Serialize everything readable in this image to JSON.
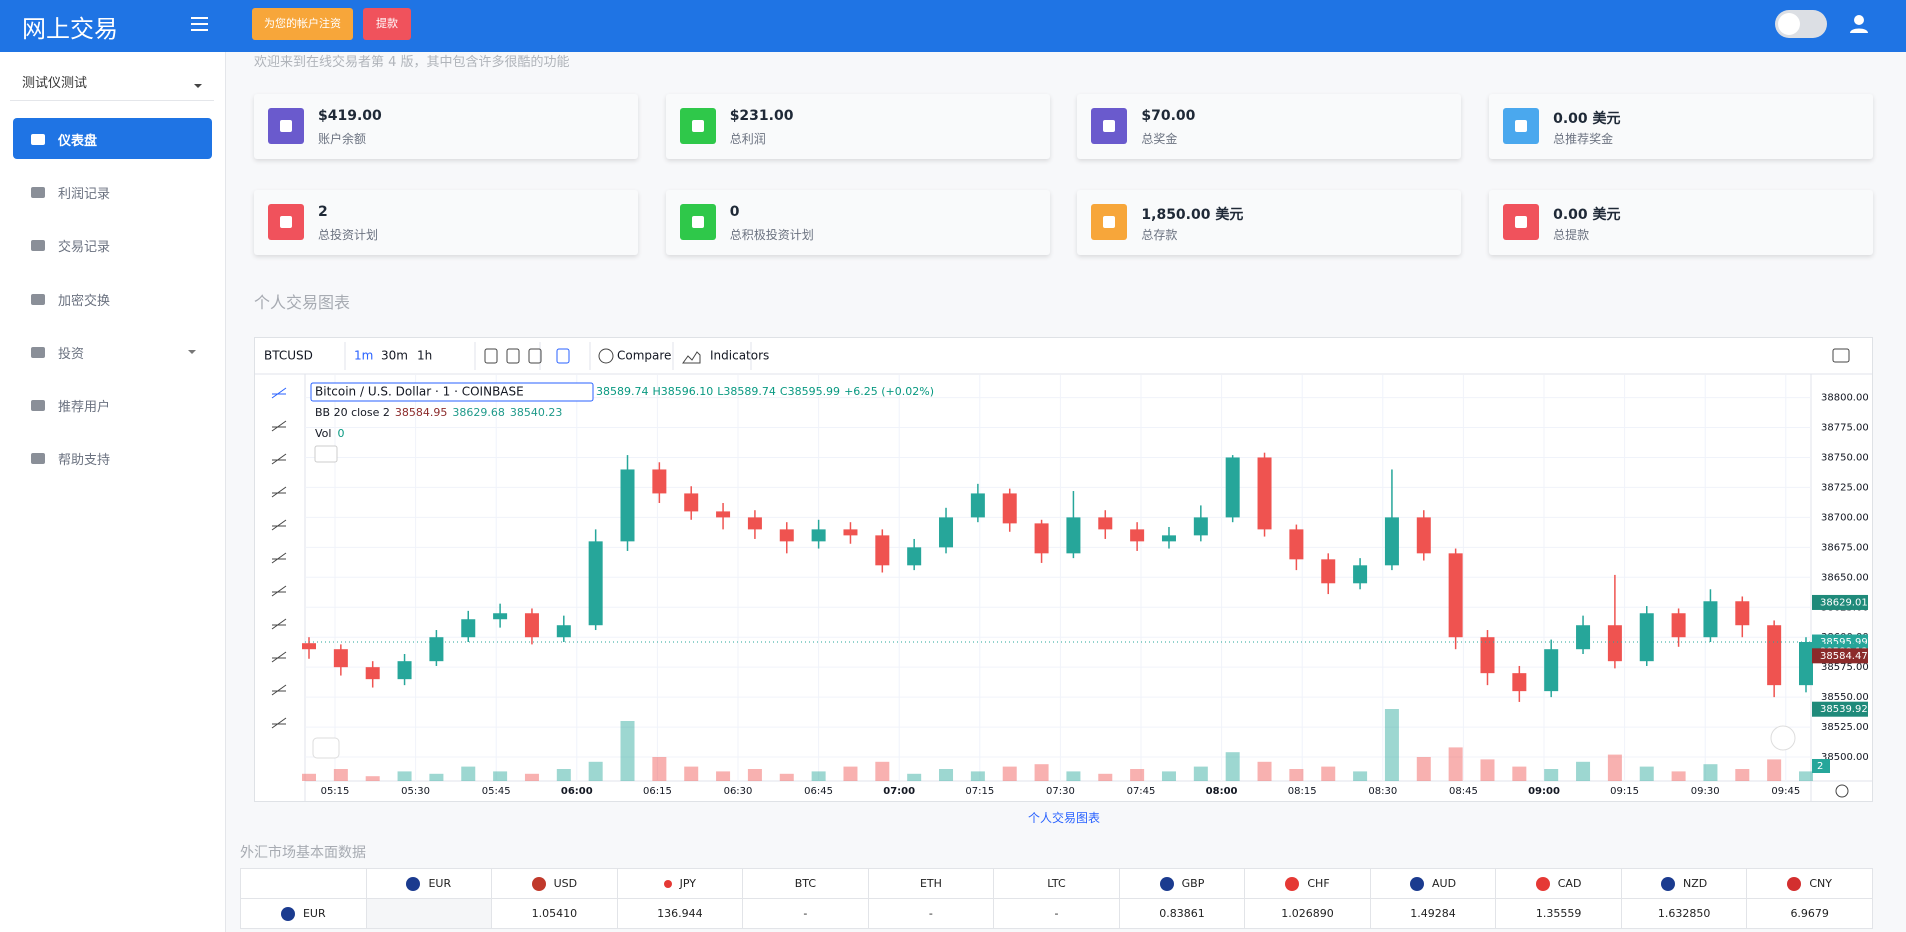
{
  "header": {
    "title": "网上交易",
    "buttons": [
      "为您的帐户注资",
      "提款"
    ]
  },
  "sidebar": {
    "account": "测试仪测试",
    "menu": [
      "仪表盘",
      "利润记录",
      "交易记录",
      "加密交换",
      "投资",
      "推荐用户",
      "帮助支持"
    ]
  },
  "welcome": "欢迎来到在线交易者第 4 版，其中包含许多很酷的功能",
  "cards": [
    {
      "value": "$419.00",
      "label": "账户余额",
      "icon_color": "#6a5acd"
    },
    {
      "value": "$231.00",
      "label": "总利润",
      "icon_color": "#2fc84a"
    },
    {
      "value": "$70.00",
      "label": "总奖金",
      "icon_color": "#6a5acd"
    },
    {
      "value": "0.00 美元",
      "label": "总推荐奖金",
      "icon_color": "#4aa8ee"
    },
    {
      "value": "2",
      "label": "总投资计划",
      "icon_color": "#f0525c"
    },
    {
      "value": "0",
      "label": "总积极投资计划",
      "icon_color": "#2fc84a"
    },
    {
      "value": "1,850.00 美元",
      "label": "总存款",
      "icon_color": "#f7a63a"
    },
    {
      "value": "0.00 美元",
      "label": "总提款",
      "icon_color": "#f0525c"
    }
  ],
  "chart_section": {
    "title": "个人交易图表",
    "link": "个人交易图表"
  },
  "chart_data": {
    "type": "candlestick",
    "symbol": "BTCUSD",
    "intervals": [
      "1m",
      "30m",
      "1h"
    ],
    "compare": "Compare",
    "indicators": "Indicators",
    "legend_title": "Bitcoin / U.S. Dollar · 1 · COINBASE",
    "ohlc": [
      "38589.74",
      "H38596.10",
      "L38589.74",
      "C38595.99",
      "+6.25 (+0.02%)"
    ],
    "bb_label": "BB 20 close 2",
    "bb_values": [
      {
        "value": 38584.95,
        "color": "#8b2a2a"
      },
      {
        "value": 38629.68,
        "color": "#1f9a8a"
      },
      {
        "value": 38540.23,
        "color": "#1f9a8a"
      }
    ],
    "vol_label": "Vol",
    "vol_value": 0,
    "up_color": "#26a69a",
    "down_color": "#ef5350",
    "ylim": [
      38480,
      38818
    ],
    "yticks": [
      {
        "value": 38500,
        "label": "38500.00"
      },
      {
        "value": 38525,
        "label": "38525.00"
      },
      {
        "value": 38550,
        "label": "38550.00"
      },
      {
        "value": 38575,
        "label": "38575.00"
      },
      {
        "value": 38600,
        "label": "38600.00"
      },
      {
        "value": 38625,
        "label": "38625.00"
      },
      {
        "value": 38650,
        "label": "38650.00"
      },
      {
        "value": 38675,
        "label": "38675.00"
      },
      {
        "value": 38700,
        "label": "38700.00"
      },
      {
        "value": 38725,
        "label": "38725.00"
      },
      {
        "value": 38750,
        "label": "38750.00"
      },
      {
        "value": 38775,
        "label": "38775.00"
      },
      {
        "value": 38800,
        "label": "38800.00"
      }
    ],
    "xticks": [
      "05:15",
      "05:30",
      "05:45",
      "06:00",
      "06:15",
      "06:30",
      "06:45",
      "07:00",
      "07:15",
      "07:30",
      "07:45",
      "08:00",
      "08:15",
      "08:30",
      "08:45",
      "09:00",
      "09:15",
      "09:30",
      "09:45"
    ],
    "candles": [
      [
        38595,
        38600,
        38582,
        38590
      ],
      [
        38590,
        38594,
        38568,
        38575
      ],
      [
        38575,
        38580,
        38558,
        38565
      ],
      [
        38565,
        38586,
        38560,
        38580
      ],
      [
        38580,
        38606,
        38576,
        38600
      ],
      [
        38600,
        38622,
        38596,
        38615
      ],
      [
        38615,
        38628,
        38608,
        38620
      ],
      [
        38620,
        38624,
        38594,
        38600
      ],
      [
        38600,
        38618,
        38596,
        38610
      ],
      [
        38610,
        38690,
        38606,
        38680
      ],
      [
        38680,
        38752,
        38672,
        38740
      ],
      [
        38740,
        38746,
        38712,
        38720
      ],
      [
        38720,
        38726,
        38698,
        38705
      ],
      [
        38705,
        38712,
        38690,
        38700
      ],
      [
        38700,
        38706,
        38682,
        38690
      ],
      [
        38690,
        38696,
        38670,
        38680
      ],
      [
        38680,
        38698,
        38674,
        38690
      ],
      [
        38690,
        38696,
        38678,
        38685
      ],
      [
        38685,
        38690,
        38654,
        38660
      ],
      [
        38660,
        38682,
        38656,
        38675
      ],
      [
        38675,
        38708,
        38670,
        38700
      ],
      [
        38700,
        38728,
        38696,
        38720
      ],
      [
        38720,
        38724,
        38688,
        38695
      ],
      [
        38695,
        38698,
        38662,
        38670
      ],
      [
        38670,
        38722,
        38666,
        38700
      ],
      [
        38700,
        38706,
        38682,
        38690
      ],
      [
        38690,
        38696,
        38672,
        38680
      ],
      [
        38680,
        38692,
        38674,
        38685
      ],
      [
        38685,
        38710,
        38680,
        38700
      ],
      [
        38700,
        38752,
        38696,
        38750
      ],
      [
        38750,
        38754,
        38684,
        38690
      ],
      [
        38690,
        38694,
        38656,
        38665
      ],
      [
        38665,
        38670,
        38636,
        38645
      ],
      [
        38645,
        38666,
        38640,
        38660
      ],
      [
        38660,
        38740,
        38656,
        38700
      ],
      [
        38700,
        38706,
        38664,
        38670
      ],
      [
        38670,
        38674,
        38590,
        38600
      ],
      [
        38600,
        38606,
        38560,
        38570
      ],
      [
        38570,
        38576,
        38546,
        38555
      ],
      [
        38555,
        38598,
        38550,
        38590
      ],
      [
        38590,
        38618,
        38586,
        38610
      ],
      [
        38610,
        38652,
        38574,
        38580
      ],
      [
        38580,
        38626,
        38576,
        38620
      ],
      [
        38620,
        38624,
        38592,
        38600
      ],
      [
        38600,
        38640,
        38596,
        38630
      ],
      [
        38630,
        38634,
        38600,
        38610
      ],
      [
        38610,
        38614,
        38550,
        38560
      ],
      [
        38560,
        38600,
        38554,
        38596
      ]
    ],
    "volume": [
      3,
      5,
      2,
      4,
      3,
      6,
      4,
      3,
      5,
      8,
      25,
      10,
      6,
      4,
      5,
      3,
      4,
      6,
      8,
      3,
      5,
      4,
      6,
      7,
      4,
      3,
      5,
      4,
      6,
      12,
      8,
      5,
      6,
      4,
      30,
      10,
      14,
      9,
      6,
      5,
      8,
      11,
      6,
      4,
      7,
      5,
      9,
      4
    ],
    "price_tags": [
      {
        "value": 38629.01,
        "color": "#1f8a7a"
      },
      {
        "value": 38595.99,
        "color": "#26a69a"
      },
      {
        "value": 38588.13,
        "color": "#26a69a"
      },
      {
        "value": 38584.47,
        "color": "#8b2a2a"
      },
      {
        "value": 38539.92,
        "color": "#1f8a7a"
      }
    ],
    "volume_tag": 2
  },
  "table": {
    "title": "外汇市场基本面数据",
    "columns": [
      "EUR",
      "USD",
      "JPY",
      "BTC",
      "ETH",
      "LTC",
      "GBP",
      "CHF",
      "AUD",
      "CAD",
      "NZD",
      "CNY"
    ],
    "rows": [
      {
        "label": "EUR",
        "cells": [
          "1.05410",
          "136.944",
          "-",
          "-",
          "-",
          "0.83861",
          "1.026890",
          "1.49284",
          "1.35559",
          "1.632850",
          "6.9679"
        ]
      }
    ]
  }
}
